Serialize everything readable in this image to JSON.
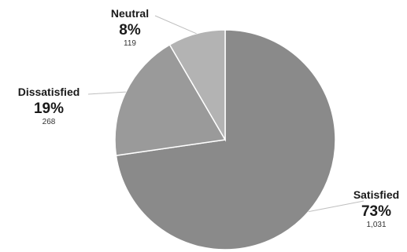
{
  "chart_data": {
    "type": "pie",
    "categories": [
      "Satisfied",
      "Dissatisfied",
      "Neutral"
    ],
    "values": [
      1031,
      268,
      119
    ],
    "percent_labels": [
      "73%",
      "19%",
      "8%"
    ],
    "count_labels": [
      "1,031",
      "268",
      "119"
    ],
    "colors": [
      "#8a8a8a",
      "#9a9a9a",
      "#b3b3b3"
    ],
    "title": "",
    "legend": "none",
    "start_angle": "12 o'clock",
    "direction": "clockwise",
    "slice_border_color": "#ffffff",
    "leader_line_color": "#bfbfbf"
  }
}
